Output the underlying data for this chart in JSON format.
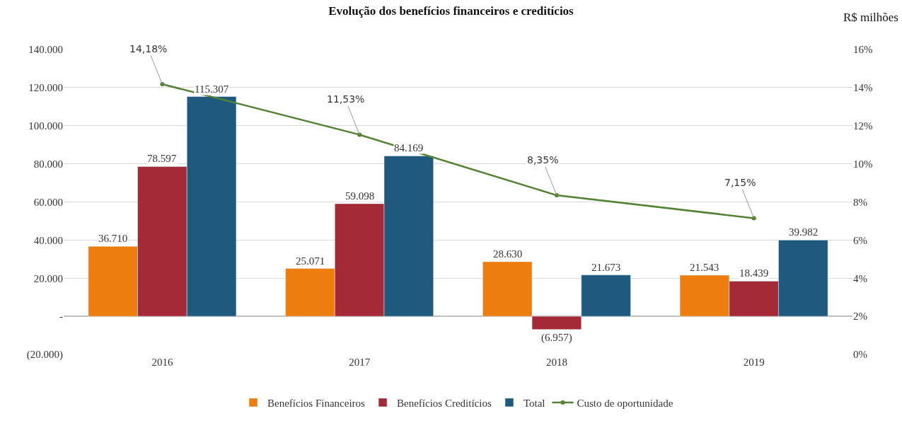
{
  "chart_data": {
    "type": "bar",
    "title": "Evolução dos benefícios financeiros e creditícios",
    "annotations": [
      "R$ milhões"
    ],
    "categories": [
      "2016",
      "2017",
      "2018",
      "2019"
    ],
    "series": [
      {
        "name": "Benefícios Financeiros",
        "color": "#ed7d0e",
        "values": [
          36710,
          25071,
          28630,
          21543
        ],
        "value_labels": [
          "36.710",
          "25.071",
          "28.630",
          "21.543"
        ]
      },
      {
        "name": "Benefícios Creditícios",
        "color": "#a32a36",
        "values": [
          78597,
          59098,
          -6957,
          18439
        ],
        "value_labels": [
          "78.597",
          "59.098",
          "(6.957)",
          "18.439"
        ]
      },
      {
        "name": "Total",
        "color": "#1f5a7e",
        "values": [
          115307,
          84169,
          21673,
          39982
        ],
        "value_labels": [
          "115.307",
          "84.169",
          "21.673",
          "39.982"
        ]
      },
      {
        "name": "Custo de oportunidade",
        "type": "line",
        "axis": "y2",
        "color": "#548235",
        "marker": "circle",
        "values": [
          14.18,
          11.53,
          8.35,
          7.15
        ],
        "value_labels": [
          "14,18%",
          "11,53%",
          "8,35%",
          "7,15%"
        ]
      }
    ],
    "ylim": [
      -20000,
      140000
    ],
    "yticks": [
      {
        "value": -20000,
        "label": "(20.000)"
      },
      {
        "value": 0,
        "label": "-"
      },
      {
        "value": 20000,
        "label": "20.000"
      },
      {
        "value": 40000,
        "label": "40.000"
      },
      {
        "value": 60000,
        "label": "60.000"
      },
      {
        "value": 80000,
        "label": "80.000"
      },
      {
        "value": 100000,
        "label": "100.000"
      },
      {
        "value": 120000,
        "label": "120.000"
      },
      {
        "value": 140000,
        "label": "140.000"
      }
    ],
    "y2lim": [
      0,
      16
    ],
    "y2ticks": [
      {
        "value": 0,
        "label": "0%"
      },
      {
        "value": 2,
        "label": "2%"
      },
      {
        "value": 4,
        "label": "4%"
      },
      {
        "value": 6,
        "label": "6%"
      },
      {
        "value": 8,
        "label": "8%"
      },
      {
        "value": 10,
        "label": "10%"
      },
      {
        "value": 12,
        "label": "12%"
      },
      {
        "value": 14,
        "label": "14%"
      },
      {
        "value": 16,
        "label": "16%"
      }
    ],
    "grid": "y",
    "legend": "bottom"
  }
}
